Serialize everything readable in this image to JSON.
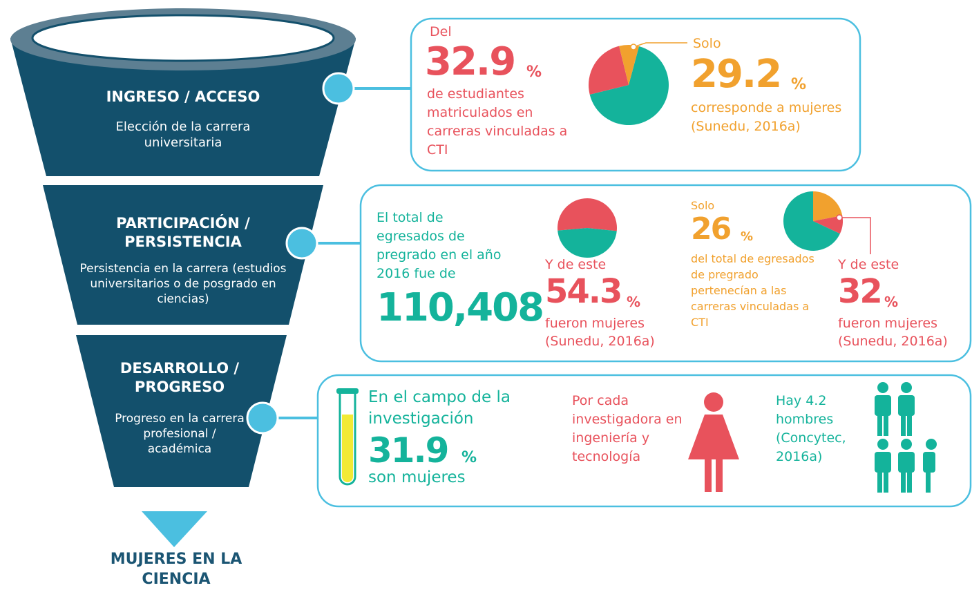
{
  "funnel": {
    "stages": [
      {
        "title": "INGRESO / ACCESO",
        "text": "Elección de la carrera universitaria"
      },
      {
        "title": "PARTICIPACIÓN / PERSISTENCIA",
        "text": "Persistencia en la carrera (estudios universitarios o de posgrado en ciencias)"
      },
      {
        "title": "DESARROLLO / PROGRESO",
        "text": "Progreso en la carrera profesional / académica"
      }
    ],
    "result": "MUJERES EN LA CIENCIA"
  },
  "panels": [
    {
      "lead": "Del",
      "value": "32.9",
      "unit": "%",
      "text": "de estudiantes matriculados en carreras vinculadas a CTI",
      "lead2": "Solo",
      "value2": "29.2",
      "unit2": "%",
      "text2": "corresponde a mujeres (Sunedu, 2016a)",
      "pie": [
        {
          "color": "#14b39b",
          "value": 67
        },
        {
          "color": "#e8525c",
          "value": 25
        },
        {
          "color": "#f1a12e",
          "value": 8
        }
      ]
    },
    {
      "text": "El total de egresados de pregrado en el año 2016 fue de",
      "value": "110,408",
      "lead2": "Y de este",
      "value2": "54.3",
      "unit2": "%",
      "text2": "fueron mujeres (Sunedu, 2016a)",
      "pie": [
        {
          "color": "#e8525c",
          "value": 53
        },
        {
          "color": "#14b39b",
          "value": 47
        }
      ],
      "lead3": "Solo",
      "value3": "26",
      "unit3": "%",
      "text3": "del total de egresados de pregrado pertenecían a las carreras vinculadas a CTI",
      "pie2": [
        {
          "color": "#f1a12e",
          "value": 22
        },
        {
          "color": "#e8525c",
          "value": 10
        },
        {
          "color": "#14b39b",
          "value": 68
        }
      ],
      "lead4": "Y de este",
      "value4": "32",
      "unit4": "%",
      "text4": "fueron mujeres (Sunedu, 2016a)"
    },
    {
      "text": "En el campo de la investigación",
      "value": "31.9",
      "unit": "%",
      "text2": "son mujeres",
      "text3": "Por cada investigadora en ingeniería y tecnología",
      "text4": "Hay 4.2 hombres (Concytec, 2016a)"
    }
  ]
}
